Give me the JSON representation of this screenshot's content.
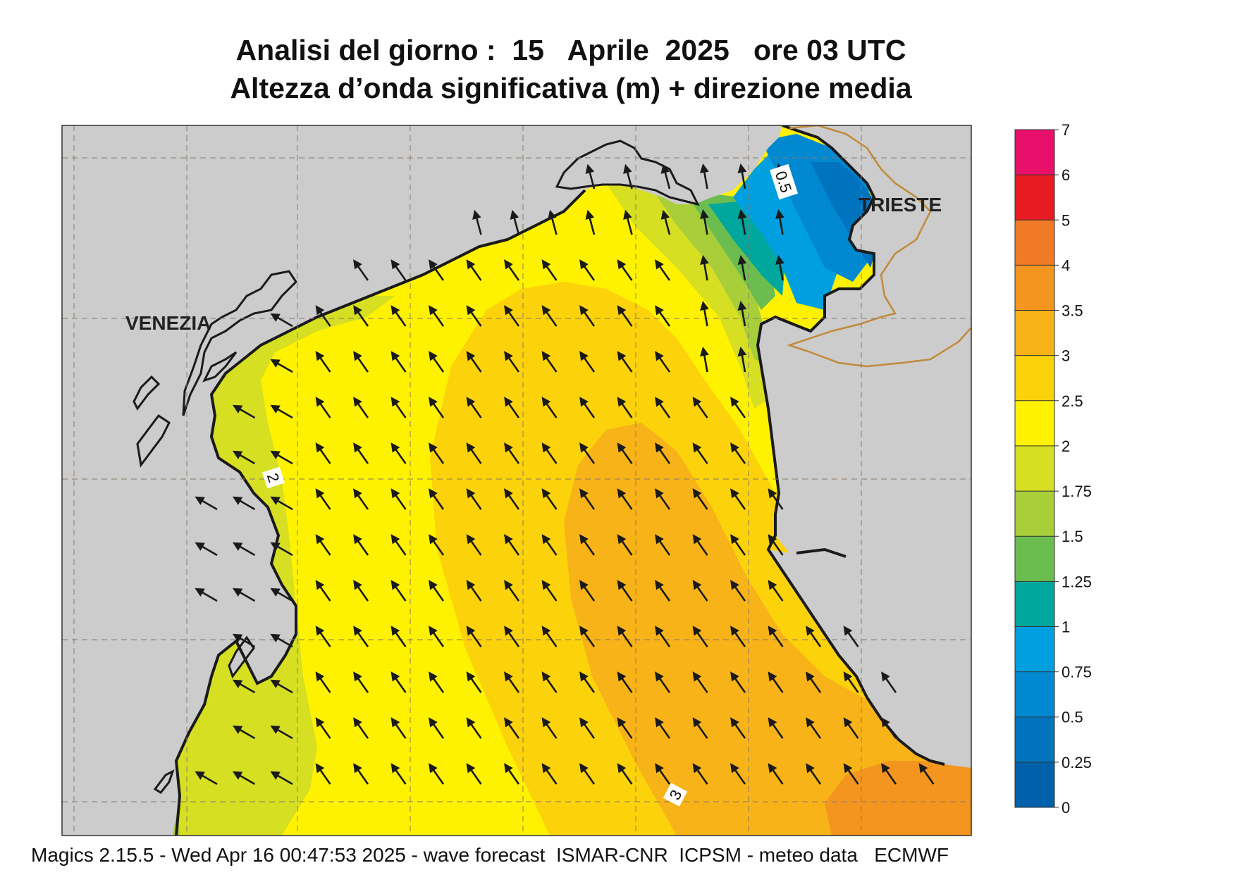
{
  "title": {
    "line1": "Analisi del giorno :  15   Aprile  2025   ore 03 UTC",
    "line2": "Altezza d’onda significativa (m) + direzione media"
  },
  "map_labels": {
    "venezia": "VENEZIA",
    "trieste": "TRIESTE"
  },
  "contour_labels": [
    "0.5",
    "2",
    "3"
  ],
  "legend": {
    "ticks": [
      "7",
      "6",
      "5",
      "4",
      "3.5",
      "3",
      "2.5",
      "2",
      "1.75",
      "1.5",
      "1.25",
      "1",
      "0.75",
      "0.5",
      "0.25",
      "0"
    ],
    "colors": [
      "#e8106a",
      "#e81b22",
      "#f07a26",
      "#f3951f",
      "#f8b318",
      "#fcd20a",
      "#fff200",
      "#d6df22",
      "#a8ce3a",
      "#6cbd50",
      "#00a79d",
      "#00a0e0",
      "#0089d0",
      "#0073bf",
      "#0060aa"
    ]
  },
  "colors": {
    "land": "#cccccc",
    "coast": "#1a1a1a",
    "border": "#c08a3a"
  },
  "footer": "Magics 2.15.5 - Wed Apr 16 00:47:53 2025 - wave forecast  ISMAR-CNR  ICPSM - meteo data   ECMWF"
}
